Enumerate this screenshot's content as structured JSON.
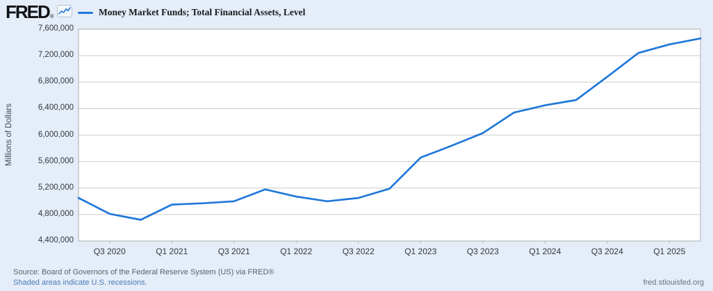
{
  "header": {
    "logo_text": "FRED",
    "logo_reg_mark": "®",
    "legend_label": "Money Market Funds; Total Financial Assets, Level"
  },
  "chart_data": {
    "type": "line",
    "title": "Money Market Funds; Total Financial Assets, Level",
    "xlabel": "",
    "ylabel": "Millions of Dollars",
    "x": [
      "Q2 2020",
      "Q3 2020",
      "Q4 2020",
      "Q1 2021",
      "Q2 2021",
      "Q3 2021",
      "Q4 2021",
      "Q1 2022",
      "Q2 2022",
      "Q3 2022",
      "Q4 2022",
      "Q1 2023",
      "Q2 2023",
      "Q3 2023",
      "Q4 2023",
      "Q1 2024",
      "Q2 2024",
      "Q3 2024",
      "Q4 2024",
      "Q1 2025",
      "Q2 2025"
    ],
    "values": [
      5050000,
      4810000,
      4720000,
      4950000,
      4970000,
      5000000,
      5180000,
      5070000,
      5000000,
      5050000,
      5190000,
      5660000,
      5840000,
      6030000,
      6340000,
      6450000,
      6530000,
      6880000,
      7240000,
      7370000,
      7460000
    ],
    "ylim": [
      4400000,
      7600000
    ],
    "y_tick_step": 400000,
    "y_tick_labels": [
      "7,600,000",
      "7,200,000",
      "6,800,000",
      "6,400,000",
      "6,000,000",
      "5,600,000",
      "5,200,000",
      "4,800,000",
      "4,400,000"
    ],
    "x_tick_labels": [
      "Q3 2020",
      "Q1 2021",
      "Q3 2021",
      "Q1 2022",
      "Q3 2022",
      "Q1 2023",
      "Q3 2023",
      "Q1 2024",
      "Q3 2024",
      "Q1 2025"
    ],
    "x_tick_indices": [
      1,
      3,
      5,
      7,
      9,
      11,
      13,
      15,
      17,
      19
    ],
    "grid": true,
    "legend_position": "top",
    "line_color": "#2077d9",
    "plot_bg": "#ffffff",
    "grid_color": "#cccccc",
    "border_color": "#a9aeb4"
  },
  "footer": {
    "source_line": "Source: Board of Governors of the Federal Reserve System (US) via FRED®",
    "recession_note": "Shaded areas indicate U.S. recessions.",
    "site_url": "fred.stlouisfed.org"
  },
  "colors": {
    "page_bg": "#e4edf8",
    "accent_blue": "#2077d9",
    "link_blue": "#4c79b5"
  }
}
